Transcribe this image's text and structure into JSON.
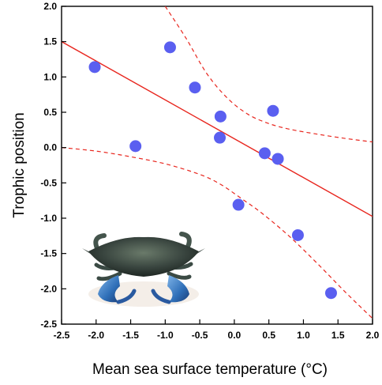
{
  "chart_data": {
    "type": "scatter",
    "title": "",
    "xlabel": "Mean sea surface temperature (°C)",
    "ylabel": "Trophic position",
    "xlim": [
      -2.5,
      2.0
    ],
    "ylim": [
      -2.5,
      2.0
    ],
    "xticks": [
      -2.5,
      -2.0,
      -1.5,
      -1.0,
      -0.5,
      0.0,
      0.5,
      1.0,
      1.5,
      2.0
    ],
    "yticks": [
      -2.5,
      -2.0,
      -1.5,
      -1.0,
      -0.5,
      0.0,
      0.5,
      1.0,
      1.5,
      2.0
    ],
    "xtick_labels": [
      "-2.5",
      "-2.0",
      "-1.5",
      "-1.0",
      "-0.5",
      "0.0",
      "0.5",
      "1.0",
      "1.5",
      "2.0"
    ],
    "ytick_labels": [
      "-2.5",
      "-2.0",
      "-1.5",
      "-1.0",
      "-0.5",
      "0.0",
      "0.5",
      "1.0",
      "1.5",
      "2.0"
    ],
    "grid": false,
    "points": [
      {
        "x": -2.02,
        "y": 1.14
      },
      {
        "x": -1.43,
        "y": 0.02
      },
      {
        "x": -0.93,
        "y": 1.42
      },
      {
        "x": -0.57,
        "y": 0.85
      },
      {
        "x": -0.2,
        "y": 0.44
      },
      {
        "x": -0.21,
        "y": 0.14
      },
      {
        "x": 0.06,
        "y": -0.81
      },
      {
        "x": 0.44,
        "y": -0.08
      },
      {
        "x": 0.56,
        "y": 0.52
      },
      {
        "x": 0.63,
        "y": -0.16
      },
      {
        "x": 0.92,
        "y": -1.24
      },
      {
        "x": 1.4,
        "y": -2.06
      }
    ],
    "regression_line": {
      "intercept": 0.125,
      "slope": -0.55
    },
    "confidence_band": {
      "upper": [
        [
          -1.0,
          2.0
        ],
        [
          -0.7,
          1.55
        ],
        [
          -0.4,
          1.05
        ],
        [
          -0.1,
          0.7
        ],
        [
          0.2,
          0.47
        ],
        [
          0.5,
          0.34
        ],
        [
          0.8,
          0.26
        ],
        [
          1.2,
          0.19
        ],
        [
          1.6,
          0.13
        ],
        [
          2.0,
          0.08
        ]
      ],
      "lower": [
        [
          -2.5,
          0.0
        ],
        [
          -2.0,
          -0.05
        ],
        [
          -1.5,
          -0.13
        ],
        [
          -1.0,
          -0.23
        ],
        [
          -0.5,
          -0.38
        ],
        [
          -0.2,
          -0.52
        ],
        [
          0.1,
          -0.72
        ],
        [
          0.4,
          -0.93
        ],
        [
          0.8,
          -1.26
        ],
        [
          1.2,
          -1.64
        ],
        [
          1.6,
          -2.04
        ],
        [
          2.0,
          -2.42
        ]
      ]
    },
    "colors": {
      "points": "#5a5ff0",
      "fit": "#e8261e"
    },
    "inset_image": "blue-crab"
  }
}
